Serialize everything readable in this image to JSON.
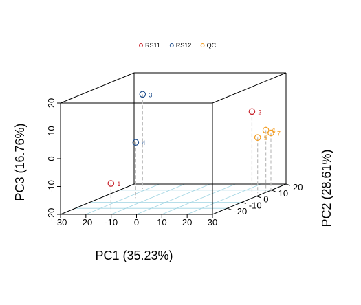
{
  "chart_data": {
    "type": "scatter",
    "projection": "3d-box",
    "title": "",
    "xlabel": "PC1 (35.23%)",
    "ylabel": "PC2 (28.61%)",
    "zlabel": "PC3 (16.76%)",
    "xlim": [
      -30,
      30
    ],
    "ylim": [
      -30,
      20
    ],
    "zlim": [
      -20,
      20
    ],
    "x_ticks": [
      "-30",
      "-20",
      "-10",
      "0",
      "10",
      "20",
      "30"
    ],
    "y_ticks": [
      "-20",
      "-10",
      "0",
      "10",
      "20"
    ],
    "z_ticks": [
      "-20",
      "-10",
      "0",
      "10",
      "20"
    ],
    "grid": "bottom-plane",
    "grid_color": "#9fd4e2",
    "drop_lines": true,
    "legend_position": "top-center",
    "series": [
      {
        "name": "RS11",
        "color": "#c8232c",
        "points": [
          {
            "label": "1",
            "x": -13,
            "y": -25,
            "z": -10
          },
          {
            "label": "2",
            "x": 27,
            "y": 2,
            "z": 10
          }
        ]
      },
      {
        "name": "RS12",
        "color": "#1f4e8c",
        "points": [
          {
            "label": "3",
            "x": -22,
            "y": 12,
            "z": 14
          },
          {
            "label": "4",
            "x": -16,
            "y": -3,
            "z": 0
          }
        ]
      },
      {
        "name": "QC",
        "color": "#f39c1f",
        "points": [
          {
            "label": "5",
            "x": 27.5,
            "y": 5,
            "z": 0
          },
          {
            "label": "6",
            "x": 29,
            "y": 8,
            "z": 2
          },
          {
            "label": "7",
            "x": 31,
            "y": 8,
            "z": 1
          }
        ]
      }
    ]
  }
}
